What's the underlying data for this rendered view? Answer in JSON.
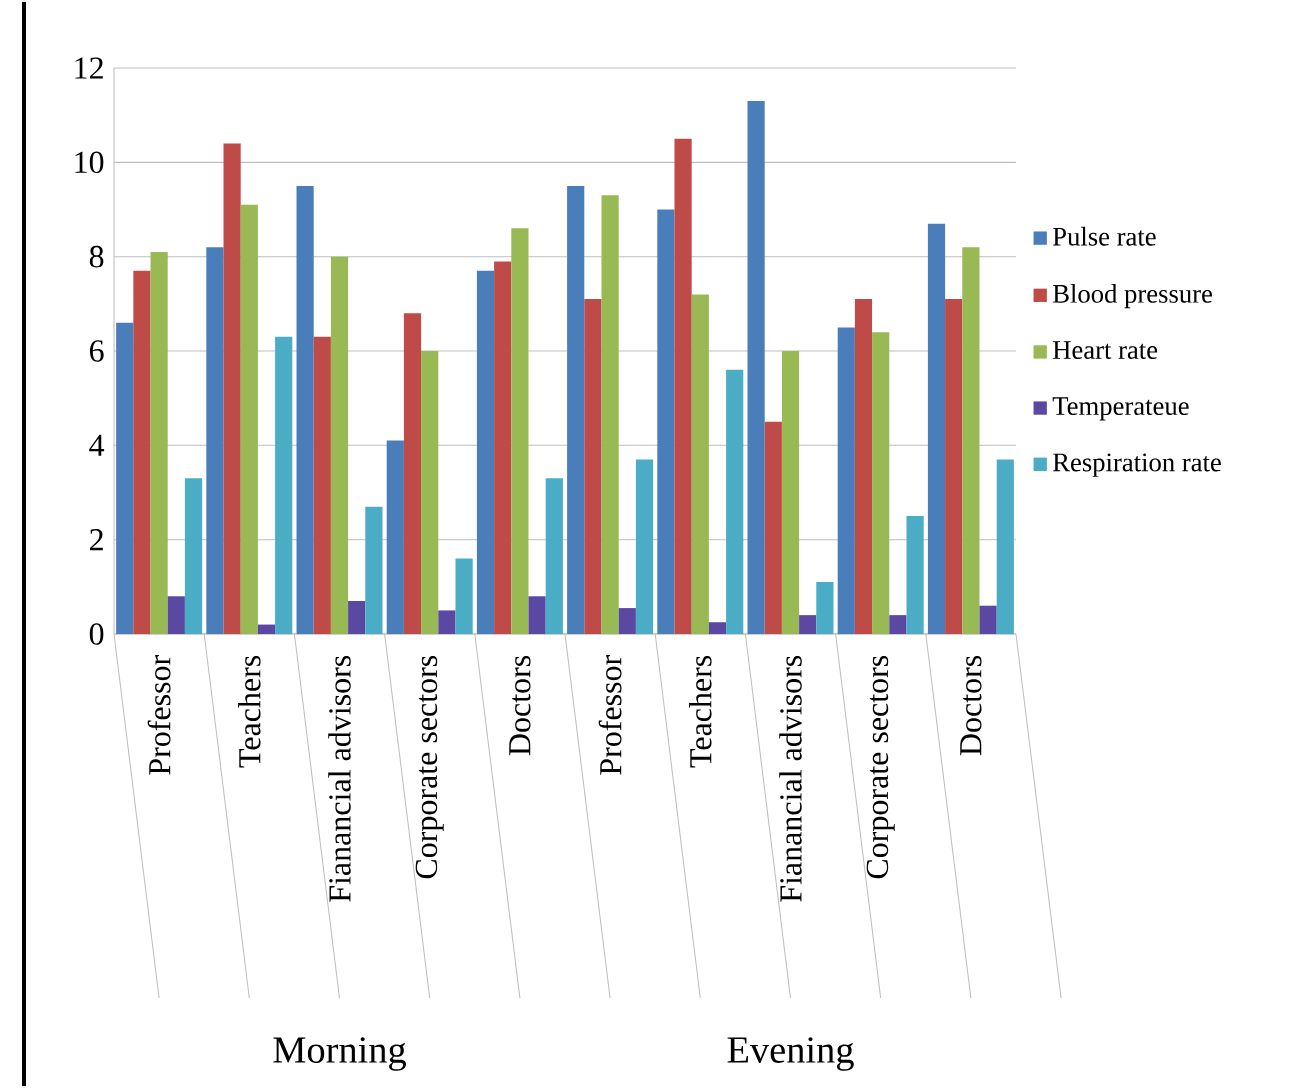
{
  "chart_data": {
    "type": "bar",
    "categories": [
      "Professor",
      "Teachers",
      "Fianancial advisors",
      "Corporate  sectors",
      "Doctors",
      "Professor",
      "Teachers",
      "Fianancial advisors",
      "Corporate  sectors",
      "Doctors"
    ],
    "series": [
      {
        "name": "Pulse rate",
        "color": "#4a7ebb",
        "values": [
          6.6,
          8.2,
          9.5,
          4.1,
          7.7,
          9.5,
          9.0,
          11.3,
          6.5,
          8.7
        ]
      },
      {
        "name": "Blood pressure",
        "color": "#be4b48",
        "values": [
          7.7,
          10.4,
          6.3,
          6.8,
          7.9,
          7.1,
          10.5,
          4.5,
          7.1,
          7.1
        ]
      },
      {
        "name": "Heart rate",
        "color": "#98b954",
        "values": [
          8.1,
          9.1,
          8.0,
          6.0,
          8.6,
          9.3,
          7.2,
          6.0,
          6.4,
          8.2
        ]
      },
      {
        "name": "Temperateue",
        "color": "#5b48a2",
        "values": [
          0.8,
          0.2,
          0.7,
          0.5,
          0.8,
          0.55,
          0.25,
          0.4,
          0.4,
          0.6
        ]
      },
      {
        "name": "Respiration rate",
        "color": "#4bacc6",
        "values": [
          3.3,
          6.3,
          2.7,
          1.6,
          3.3,
          3.7,
          5.6,
          1.1,
          2.5,
          3.7
        ]
      }
    ],
    "ylim": [
      0,
      12
    ],
    "yticks": [
      0,
      2,
      4,
      6,
      8,
      10,
      12
    ],
    "grid": "y",
    "legend": "right",
    "annotations": [
      "Morning",
      "Evening"
    ]
  }
}
